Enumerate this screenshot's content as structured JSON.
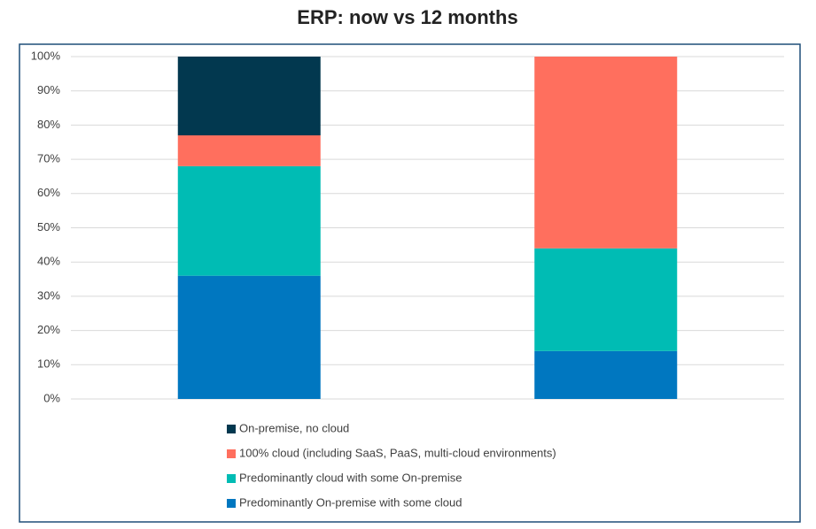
{
  "chart_data": {
    "type": "stacked-bar",
    "title": "ERP: now vs 12 months",
    "categories": [
      null,
      null
    ],
    "series": [
      {
        "name": "Predominantly On-premise with some cloud",
        "color": "#0077c0",
        "values": [
          36,
          14
        ]
      },
      {
        "name": "Predominantly cloud with some On-premise",
        "color": "#00bcb4",
        "values": [
          32,
          30
        ]
      },
      {
        "name": "100% cloud (including SaaS, PaaS, multi-cloud environments)",
        "color": "#ff6f5e",
        "values": [
          9,
          56
        ]
      },
      {
        "name": "On-premise, no cloud",
        "color": "#02384f",
        "values": [
          23,
          0
        ]
      }
    ],
    "ylim": [
      0,
      100
    ],
    "yticks": [
      {
        "value": 0,
        "label": "0%"
      },
      {
        "value": 10,
        "label": "10%"
      },
      {
        "value": 20,
        "label": "20%"
      },
      {
        "value": 30,
        "label": "30%"
      },
      {
        "value": 40,
        "label": "40%"
      },
      {
        "value": 50,
        "label": "50%"
      },
      {
        "value": 60,
        "label": "60%"
      },
      {
        "value": 70,
        "label": "70%"
      },
      {
        "value": 80,
        "label": "80%"
      },
      {
        "value": 90,
        "label": "90%"
      },
      {
        "value": 100,
        "label": "100%"
      }
    ],
    "grid": true,
    "legend": "bottom"
  }
}
